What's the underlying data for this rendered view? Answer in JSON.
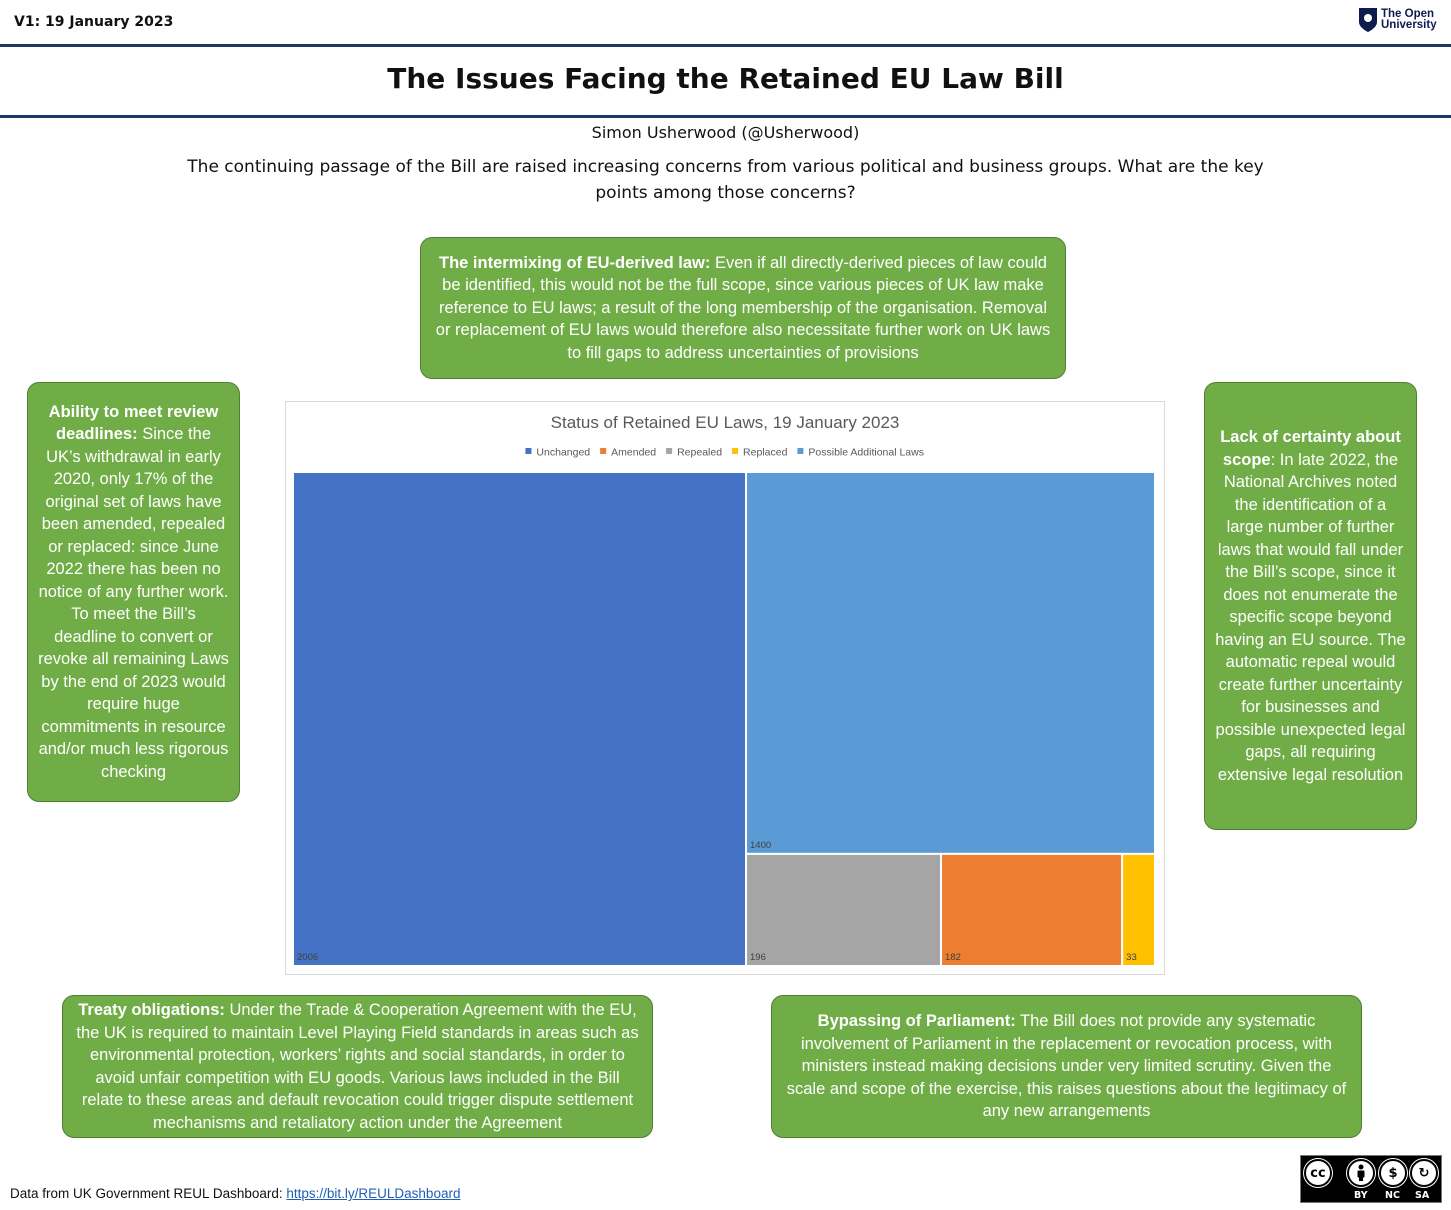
{
  "header": {
    "version": "V1: 19 January 2023",
    "logo_line1": "The Open",
    "logo_line2": "University"
  },
  "title": "The Issues Facing the Retained EU Law Bill",
  "author": "Simon Usherwood (@Usherwood)",
  "intro": "The continuing passage of the Bill are raised increasing concerns from various political and business groups. What are the key points among those concerns?",
  "boxes": {
    "intermixing": {
      "heading": "The intermixing of EU-derived law:",
      "body": " Even if all directly-derived pieces of law could be identified, this would not be the full scope, since various pieces of UK law make reference to EU laws; a result of the long membership of the organisation. Removal or replacement of EU laws would therefore also necessitate further work on UK laws to fill gaps to address uncertainties of provisions"
    },
    "deadlines": {
      "heading": "Ability to meet review deadlines:",
      "body": " Since the UK’s withdrawal in early 2020, only 17% of the original set of laws have been amended, repealed or replaced: since June 2022 there has been no notice of any further work. To meet the Bill’s deadline to convert or revoke all remaining Laws by the end of 2023 would require huge commitments in resource and/or much less rigorous checking"
    },
    "scope": {
      "heading": "Lack of certainty about scope",
      "body": ": In late 2022, the National Archives noted the identification of a large number of further laws that would fall under the Bill’s scope, since it does not enumerate the specific scope beyond having an EU source. The automatic repeal would create further uncertainty for businesses and possible unexpected legal gaps, all requiring extensive legal resolution"
    },
    "treaty": {
      "heading": "Treaty obligations:",
      "body": " Under the Trade & Cooperation Agreement with the EU, the UK is required to maintain Level Playing Field standards in areas such as environmental protection, workers’ rights and social standards, in order to avoid unfair competition with EU goods. Various laws included in the Bill relate to these areas and default revocation could trigger dispute settlement mechanisms and retaliatory action under the Agreement"
    },
    "parliament": {
      "heading": "Bypassing of Parliament:",
      "body": " The Bill does not provide any systematic involvement of Parliament in the replacement or revocation process, with ministers instead making decisions under very limited scrutiny. Given the scale and scope of the exercise, this raises questions about the legitimacy of any new arrangements"
    }
  },
  "source": {
    "prefix": "Data from UK Government  REUL Dashboard: ",
    "link": "https://bit.ly/REULDashboard"
  },
  "license": {
    "by": "BY",
    "nc": "NC",
    "sa": "SA",
    "cc": "cc"
  },
  "colors": {
    "green_box": "#70ad47",
    "rule": "#1f3864"
  },
  "chart_data": {
    "type": "treemap",
    "title": "Status of Retained EU Laws, 19 January 2023",
    "legend_position": "top",
    "series": [
      {
        "name": "Unchanged",
        "value": 2006,
        "color": "#4472c4"
      },
      {
        "name": "Amended",
        "value": 182,
        "color": "#ed7d31"
      },
      {
        "name": "Repealed",
        "value": 196,
        "color": "#a5a5a5"
      },
      {
        "name": "Replaced",
        "value": 33,
        "color": "#ffc000"
      },
      {
        "name": "Possible Additional Laws",
        "value": 1400,
        "color": "#5b9bd5"
      }
    ]
  }
}
